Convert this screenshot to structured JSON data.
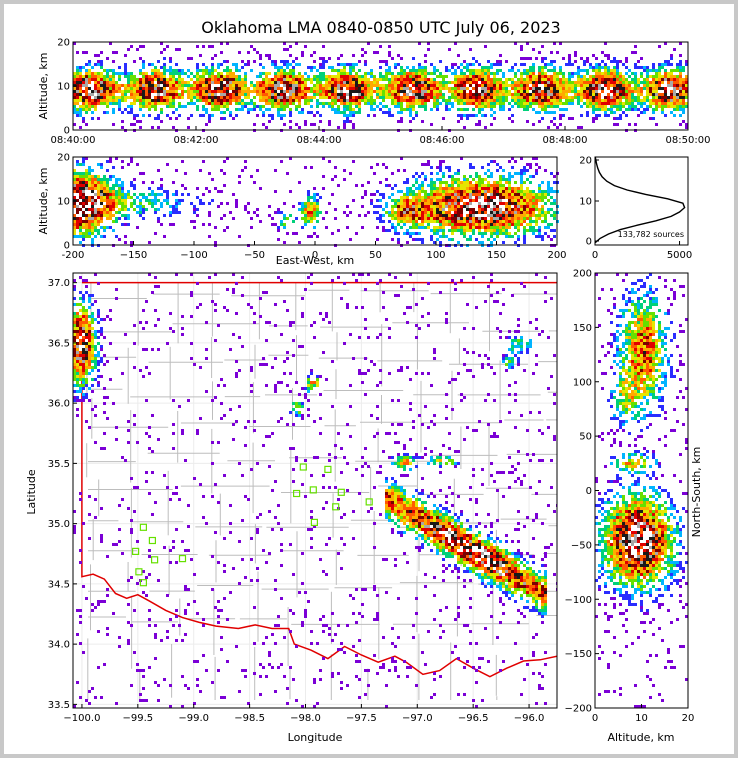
{
  "title": "Oklahoma LMA 0840-0850 UTC July 06, 2023",
  "colors": {
    "density_scale": [
      "#7b00d6",
      "#2a2cff",
      "#00b4ff",
      "#00d07a",
      "#66e000",
      "#e6e600",
      "#ffaa00",
      "#ff5a00",
      "#e00000",
      "#7a0000",
      "#1a1a1a",
      "#a8a8a8",
      "#ffffff"
    ],
    "state_border": "#e00000",
    "county_lines": "#bdbdbd",
    "station_marker": "#66e000",
    "profile_line": "#000000"
  },
  "chart_data": [
    {
      "type": "heatmap",
      "name": "time-altitude",
      "x_ticks": [
        "08:40:00",
        "08:42:00",
        "08:44:00",
        "08:46:00",
        "08:48:00",
        "08:50:00"
      ],
      "ylabel": "Altitude, km",
      "y_ticks": [
        "0",
        "10",
        "20"
      ],
      "ylim": [
        0,
        20
      ]
    },
    {
      "type": "heatmap",
      "name": "east-west-altitude",
      "xlabel": "East-West, km",
      "x_ticks": [
        "-200",
        "−150",
        "−100",
        "−50",
        "0",
        "50",
        "100",
        "150",
        "200"
      ],
      "xlim": [
        -200,
        200
      ],
      "ylabel": "Altitude, km",
      "y_ticks": [
        "0",
        "10",
        "20"
      ],
      "ylim": [
        0,
        20
      ]
    },
    {
      "type": "line",
      "name": "altitude-histogram",
      "x_ticks": [
        "0",
        "5000"
      ],
      "xlim": [
        0,
        5500
      ],
      "y_ticks": [
        "0",
        "10",
        "20"
      ],
      "ylim": [
        0,
        20
      ],
      "annotation": "133,782 sources",
      "points": [
        [
          0,
          0.5
        ],
        [
          300,
          1.5
        ],
        [
          800,
          2.5
        ],
        [
          1500,
          3.5
        ],
        [
          2500,
          4.5
        ],
        [
          3600,
          5.5
        ],
        [
          4500,
          6.5
        ],
        [
          5000,
          7.5
        ],
        [
          5300,
          8.5
        ],
        [
          5200,
          9.5
        ],
        [
          4300,
          10.5
        ],
        [
          3000,
          11.5
        ],
        [
          1900,
          12.5
        ],
        [
          1150,
          13.5
        ],
        [
          700,
          14.5
        ],
        [
          420,
          15.5
        ],
        [
          260,
          16.5
        ],
        [
          160,
          17.5
        ],
        [
          90,
          18.5
        ],
        [
          40,
          19.5
        ],
        [
          10,
          20
        ]
      ]
    },
    {
      "type": "scatter",
      "name": "plan-view",
      "xlabel": "Longitude",
      "x_ticks": [
        "−100.0",
        "−99.5",
        "−99.0",
        "−98.5",
        "−98.0",
        "−97.5",
        "−97.0",
        "−96.5",
        "−96.0"
      ],
      "xlim": [
        -100.08,
        -95.75
      ],
      "ylabel": "Latitude",
      "y_ticks": [
        "33.5",
        "34.0",
        "34.5",
        "35.0",
        "35.5",
        "36.0",
        "36.5",
        "37.0"
      ],
      "ylim": [
        33.47,
        37.08
      ],
      "stations": [
        [
          -99.45,
          34.97
        ],
        [
          -99.37,
          34.86
        ],
        [
          -99.52,
          34.77
        ],
        [
          -99.35,
          34.7
        ],
        [
          -99.49,
          34.6
        ],
        [
          -99.45,
          34.51
        ],
        [
          -99.1,
          34.71
        ],
        [
          -98.02,
          35.47
        ],
        [
          -97.8,
          35.45
        ],
        [
          -98.08,
          35.25
        ],
        [
          -97.93,
          35.28
        ],
        [
          -97.68,
          35.26
        ],
        [
          -97.43,
          35.18
        ],
        [
          -97.73,
          35.14
        ],
        [
          -97.92,
          35.01
        ]
      ]
    },
    {
      "type": "heatmap",
      "name": "altitude-north-south",
      "xlabel": "Altitude, km",
      "x_ticks": [
        "0",
        "10",
        "20"
      ],
      "xlim": [
        0,
        20
      ],
      "ylabel": "North-South, km",
      "y_ticks": [
        "−200",
        "−150",
        "−100",
        "−50",
        "0",
        "50",
        "100",
        "150",
        "200"
      ],
      "ylim": [
        -200,
        200
      ]
    }
  ]
}
